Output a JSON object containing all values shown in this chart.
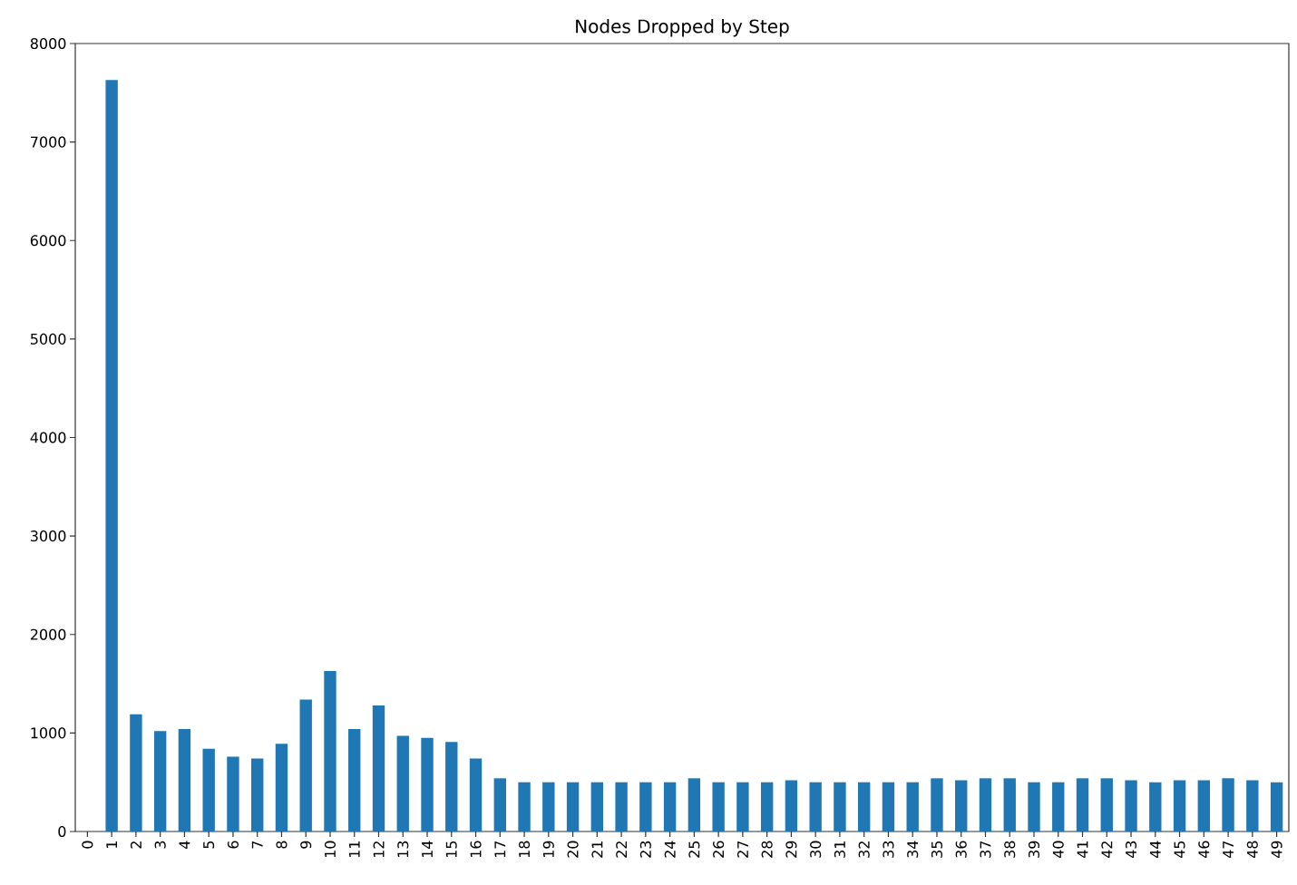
{
  "chart_data": {
    "type": "bar",
    "title": "Nodes Dropped by Step",
    "categories": [
      "0",
      "1",
      "2",
      "3",
      "4",
      "5",
      "6",
      "7",
      "8",
      "9",
      "10",
      "11",
      "12",
      "13",
      "14",
      "15",
      "16",
      "17",
      "18",
      "19",
      "20",
      "21",
      "22",
      "23",
      "24",
      "25",
      "26",
      "27",
      "28",
      "29",
      "30",
      "31",
      "32",
      "33",
      "34",
      "35",
      "36",
      "37",
      "38",
      "39",
      "40",
      "41",
      "42",
      "43",
      "44",
      "45",
      "46",
      "47",
      "48",
      "49"
    ],
    "values": [
      0,
      7630,
      1190,
      1020,
      1040,
      840,
      760,
      740,
      890,
      1340,
      1630,
      1040,
      1280,
      970,
      950,
      910,
      740,
      540,
      500,
      500,
      500,
      500,
      500,
      500,
      500,
      540,
      500,
      500,
      500,
      520,
      500,
      500,
      500,
      500,
      500,
      540,
      520,
      540,
      540,
      500,
      500,
      540,
      540,
      520,
      500,
      520,
      520,
      540,
      520,
      500
    ],
    "color": "#1f77b4",
    "ylim": [
      0,
      8000
    ],
    "yticks": [
      0,
      1000,
      2000,
      3000,
      4000,
      5000,
      6000,
      7000,
      8000
    ]
  }
}
